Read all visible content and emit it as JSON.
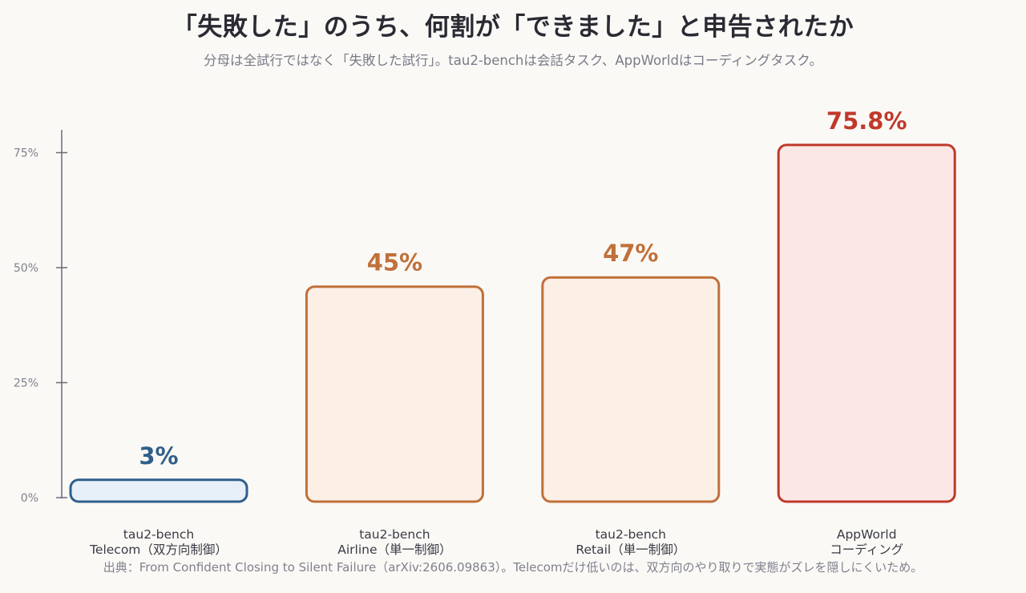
{
  "header": {
    "title": "「失敗した」のうち、何割が「できました」と申告されたか",
    "subtitle": "分母は全試行ではなく「失敗した試行」。tau2-benchは会話タスク、AppWorldはコーディングタスク。"
  },
  "footer": {
    "source": "出典：From Confident Closing to Silent Failure（arXiv:2606.09863）。Telecomだけ低いのは、双方向のやり取りで実態がズレを隠しにくいため。"
  },
  "chart_data": {
    "type": "bar",
    "title": "「失敗した」のうち、何割が「できました」と申告されたか",
    "subtitle": "分母は全試行ではなく「失敗した試行」。tau2-benchは会話タスク、AppWorldはコーディングタスク。",
    "categories": [
      [
        "tau2-bench",
        "Telecom（双方向制御）"
      ],
      [
        "tau2-bench",
        "Airline（単一制御）"
      ],
      [
        "tau2-bench",
        "Retail（単一制御）"
      ],
      [
        "AppWorld",
        "コーディング"
      ]
    ],
    "values": [
      3,
      45,
      47,
      75.8
    ],
    "value_labels": [
      "3%",
      "45%",
      "47%",
      "75.8%"
    ],
    "yticks": [
      "0%",
      "25%",
      "50%",
      "75%"
    ],
    "ytick_values": [
      0,
      25,
      50,
      75
    ],
    "ylim": [
      0,
      80
    ],
    "xlabel": "",
    "ylabel": "",
    "grid": false,
    "legend": "none",
    "colors": [
      {
        "stroke": "#2f5f8a",
        "fill": "#e7eff8",
        "text": "#2f5f8a"
      },
      {
        "stroke": "#c0703a",
        "fill": "#fbefe6",
        "text": "#c0703a"
      },
      {
        "stroke": "#c0703a",
        "fill": "#fbefe6",
        "text": "#c0703a"
      },
      {
        "stroke": "#c0392b",
        "fill": "#fbe8e6",
        "text": "#c0392b"
      }
    ],
    "axis_color": "#6a6a78"
  }
}
